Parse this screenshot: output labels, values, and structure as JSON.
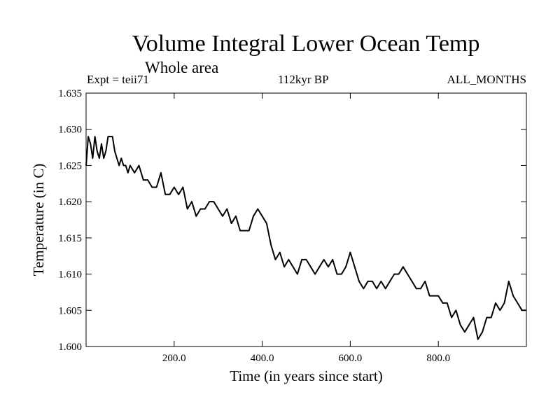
{
  "header": {
    "title": "Volume Integral Lower Ocean Temp",
    "subtitle": "Whole area",
    "expt": "Expt = teii71",
    "period": "112kyr BP",
    "months": "ALL_MONTHS"
  },
  "chart_data": {
    "type": "line",
    "title": "Volume Integral Lower Ocean Temp",
    "xlabel": "Time (in years since start)",
    "ylabel": "Temperature (in C)",
    "xlim": [
      0,
      1000
    ],
    "ylim": [
      1.6,
      1.635
    ],
    "xticks": [
      "200.0",
      "400.0",
      "600.0",
      "800.0"
    ],
    "xtick_values": [
      200,
      400,
      600,
      800
    ],
    "yticks": [
      "1.600",
      "1.605",
      "1.610",
      "1.615",
      "1.620",
      "1.625",
      "1.630",
      "1.635"
    ],
    "ytick_values": [
      1.6,
      1.605,
      1.61,
      1.615,
      1.62,
      1.625,
      1.63,
      1.635
    ],
    "grid": false,
    "series": [
      {
        "x": [
          0,
          5,
          10,
          15,
          20,
          25,
          30,
          35,
          40,
          45,
          50,
          55,
          60,
          65,
          70,
          75,
          80,
          85,
          90,
          95,
          100,
          110,
          120,
          130,
          140,
          150,
          160,
          170,
          180,
          190,
          200,
          210,
          220,
          230,
          240,
          250,
          260,
          270,
          280,
          290,
          300,
          310,
          320,
          330,
          340,
          350,
          360,
          370,
          380,
          390,
          400,
          410,
          420,
          430,
          440,
          450,
          460,
          470,
          480,
          490,
          500,
          510,
          520,
          530,
          540,
          550,
          560,
          570,
          580,
          590,
          600,
          610,
          620,
          630,
          640,
          650,
          660,
          670,
          680,
          690,
          700,
          710,
          720,
          730,
          740,
          750,
          760,
          770,
          780,
          790,
          800,
          810,
          820,
          830,
          840,
          850,
          860,
          870,
          880,
          890,
          900,
          910,
          920,
          930,
          940,
          950,
          960,
          970,
          980,
          990,
          1000
        ],
        "y": [
          1.625,
          1.629,
          1.628,
          1.626,
          1.629,
          1.627,
          1.626,
          1.628,
          1.626,
          1.627,
          1.629,
          1.629,
          1.629,
          1.627,
          1.626,
          1.625,
          1.626,
          1.625,
          1.625,
          1.624,
          1.625,
          1.624,
          1.625,
          1.623,
          1.623,
          1.622,
          1.622,
          1.624,
          1.621,
          1.621,
          1.622,
          1.621,
          1.622,
          1.619,
          1.62,
          1.618,
          1.619,
          1.619,
          1.62,
          1.62,
          1.619,
          1.618,
          1.619,
          1.617,
          1.618,
          1.616,
          1.616,
          1.616,
          1.618,
          1.619,
          1.618,
          1.617,
          1.614,
          1.612,
          1.613,
          1.611,
          1.612,
          1.611,
          1.61,
          1.612,
          1.612,
          1.611,
          1.61,
          1.611,
          1.612,
          1.611,
          1.612,
          1.61,
          1.61,
          1.611,
          1.613,
          1.611,
          1.609,
          1.608,
          1.609,
          1.609,
          1.608,
          1.609,
          1.608,
          1.609,
          1.61,
          1.61,
          1.611,
          1.61,
          1.609,
          1.608,
          1.608,
          1.609,
          1.607,
          1.607,
          1.607,
          1.606,
          1.606,
          1.604,
          1.605,
          1.603,
          1.602,
          1.603,
          1.604,
          1.601,
          1.602,
          1.604,
          1.604,
          1.606,
          1.605,
          1.606,
          1.609,
          1.607,
          1.606,
          1.605,
          1.605
        ]
      }
    ]
  }
}
